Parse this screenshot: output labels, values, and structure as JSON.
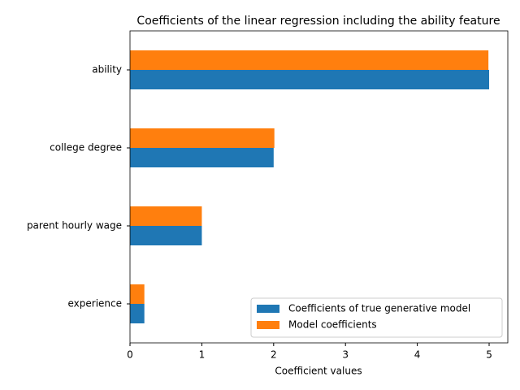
{
  "chart_data": {
    "type": "barh",
    "title": "Coefficients of the linear regression including the ability feature",
    "xlabel": "Coefficient values",
    "categories": [
      "ability",
      "college degree",
      "parent hourly wage",
      "experience"
    ],
    "series": [
      {
        "name": "Coefficients of true generative model",
        "color": "#1f77b4",
        "values": [
          5.0,
          2.0,
          1.0,
          0.2
        ]
      },
      {
        "name": "Model coefficients",
        "color": "#ff7f0e",
        "values": [
          4.99,
          2.01,
          1.0,
          0.2
        ]
      }
    ],
    "xlim": [
      0,
      5.26
    ],
    "xticks": [
      0,
      1,
      2,
      3,
      4,
      5
    ],
    "legend": "lower right"
  }
}
